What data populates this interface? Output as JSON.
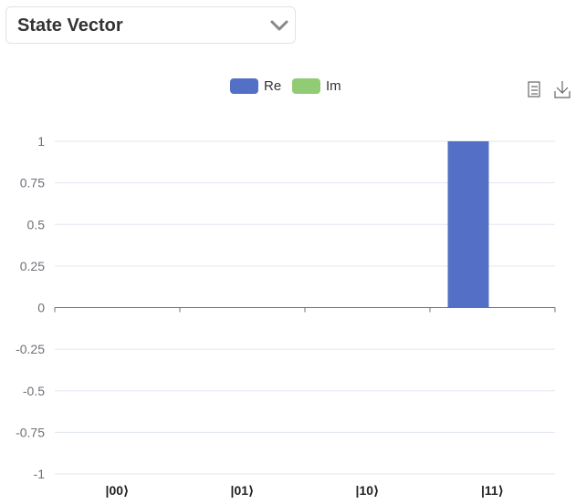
{
  "selector": {
    "value": "State Vector"
  },
  "toolbox": {
    "icons": [
      "data-view-icon",
      "download-icon"
    ]
  },
  "colors": {
    "re": "#5470c6",
    "im": "#91cc75",
    "axis": "#6e7079",
    "grid": "#e0e6f1",
    "label": "#6e7079"
  },
  "chart_data": {
    "type": "bar",
    "categories": [
      "|00⟩",
      "|01⟩",
      "|10⟩",
      "|11⟩"
    ],
    "series": [
      {
        "name": "Re",
        "values": [
          0,
          0,
          0,
          1
        ]
      },
      {
        "name": "Im",
        "values": [
          0,
          0,
          0,
          0
        ]
      }
    ],
    "ylim": [
      -1,
      1
    ],
    "yticks": [
      1,
      0.75,
      0.5,
      0.25,
      0,
      -0.25,
      -0.5,
      -0.75,
      -1
    ],
    "ytick_labels": [
      "1",
      "0.75",
      "0.5",
      "0.25",
      "0",
      "-0.25",
      "-0.5",
      "-0.75",
      "-1"
    ],
    "grid": true,
    "legend": "top-center"
  }
}
